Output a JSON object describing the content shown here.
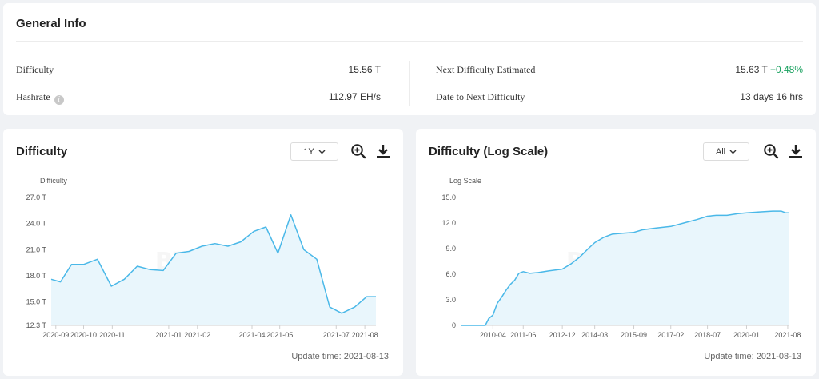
{
  "general": {
    "title": "General Info",
    "rows_left": [
      {
        "label": "Difficulty",
        "value": "15.56 T"
      },
      {
        "label": "Hashrate",
        "value": "112.97 EH/s"
      }
    ],
    "rows_right": [
      {
        "label": "Next Difficulty Estimated",
        "value": "15.63 T",
        "change": "+0.48%"
      },
      {
        "label": "Date to Next Difficulty",
        "value": "13 days 16 hrs"
      }
    ],
    "info_icon_glyph": "i"
  },
  "charts": [
    {
      "title": "Difficulty",
      "range": "1Y",
      "update_time": "Update time: 2021-08-13",
      "watermark": "BTC.com"
    },
    {
      "title": "Difficulty (Log Scale)",
      "range": "All",
      "update_time": "Update time: 2021-08-13",
      "watermark": "BTC.com"
    }
  ],
  "colors": {
    "line": "#4ab8e8",
    "fill": "#e9f6fc",
    "positive": "#19a15f"
  },
  "chart_data": [
    {
      "type": "area",
      "title": "Difficulty",
      "ylabel": "Difficulty",
      "ylim": [
        12.3,
        27.0
      ],
      "yticks": [
        12.3,
        15.0,
        18.0,
        21.0,
        24.0,
        27.0
      ],
      "ytick_labels": [
        "12.3 T",
        "15.0 T",
        "18.0 T",
        "21.0 T",
        "24.0 T",
        "27.0 T"
      ],
      "xlim": [
        "2020-08-27",
        "2021-08-13"
      ],
      "xticks": [
        "2020-09-01",
        "2020-10-01",
        "2020-11-01",
        "2021-01-01",
        "2021-02-01",
        "2021-04-01",
        "2021-05-01",
        "2021-07-01",
        "2021-08-01"
      ],
      "xtick_labels": [
        "2020-09",
        "2020-10",
        "2020-11",
        "2021-01",
        "2021-02",
        "2021-04",
        "2021-05",
        "2021-07",
        "2021-08"
      ],
      "x": [
        "2020-08-27",
        "2020-09-06",
        "2020-09-18",
        "2020-10-01",
        "2020-10-16",
        "2020-10-31",
        "2020-11-14",
        "2020-11-28",
        "2020-12-12",
        "2020-12-26",
        "2021-01-09",
        "2021-01-23",
        "2021-02-06",
        "2021-02-20",
        "2021-03-06",
        "2021-03-20",
        "2021-04-03",
        "2021-04-16",
        "2021-04-29",
        "2021-05-13",
        "2021-05-27",
        "2021-06-10",
        "2021-06-24",
        "2021-07-07",
        "2021-07-21",
        "2021-08-03",
        "2021-08-13"
      ],
      "y": [
        17.6,
        17.3,
        19.3,
        19.3,
        19.9,
        16.8,
        17.6,
        19.1,
        18.7,
        18.6,
        20.6,
        20.8,
        21.4,
        21.7,
        21.4,
        21.9,
        23.1,
        23.6,
        20.6,
        25.0,
        21.0,
        19.9,
        14.4,
        13.7,
        14.4,
        15.6,
        15.6
      ]
    },
    {
      "type": "area",
      "title": "Difficulty (Log Scale)",
      "ylabel": "Log Scale",
      "ylim": [
        0,
        15.0
      ],
      "yticks": [
        0,
        3.0,
        6.0,
        9.0,
        12.0,
        15.0
      ],
      "ytick_labels": [
        "0",
        "3.0",
        "6.0",
        "9.0",
        "12.0",
        "15.0"
      ],
      "xlim": [
        "2009-01-03",
        "2021-08-13"
      ],
      "xticks": [
        "2010-04-01",
        "2011-06-01",
        "2012-12-01",
        "2014-03-01",
        "2015-09-01",
        "2017-02-01",
        "2018-07-01",
        "2020-01-01",
        "2021-08-01"
      ],
      "xtick_labels": [
        "2010-04",
        "2011-06",
        "2012-12",
        "2014-03",
        "2015-09",
        "2017-02",
        "2018-07",
        "2020-01",
        "2021-08"
      ],
      "x": [
        "2009-01-03",
        "2009-08-01",
        "2009-12-15",
        "2010-02-01",
        "2010-04-01",
        "2010-06-01",
        "2010-08-01",
        "2010-10-01",
        "2010-12-01",
        "2011-02-01",
        "2011-04-01",
        "2011-06-01",
        "2011-09-01",
        "2012-01-01",
        "2012-06-01",
        "2012-12-01",
        "2013-04-01",
        "2013-08-01",
        "2013-12-01",
        "2014-03-01",
        "2014-07-01",
        "2014-11-01",
        "2015-04-01",
        "2015-09-01",
        "2016-01-01",
        "2016-07-01",
        "2017-02-01",
        "2017-08-01",
        "2018-02-01",
        "2018-07-01",
        "2018-11-01",
        "2019-04-01",
        "2019-09-01",
        "2020-01-01",
        "2020-07-01",
        "2021-01-01",
        "2021-05-01",
        "2021-07-01",
        "2021-08-13"
      ],
      "y": [
        0,
        0,
        0,
        0.8,
        1.2,
        2.6,
        3.3,
        4.1,
        4.8,
        5.3,
        6.1,
        6.3,
        6.1,
        6.2,
        6.4,
        6.6,
        7.2,
        8.0,
        9.0,
        9.7,
        10.3,
        10.7,
        10.8,
        10.9,
        11.2,
        11.4,
        11.6,
        12.0,
        12.4,
        12.8,
        12.9,
        12.9,
        13.1,
        13.2,
        13.3,
        13.4,
        13.4,
        13.2,
        13.2
      ]
    }
  ]
}
